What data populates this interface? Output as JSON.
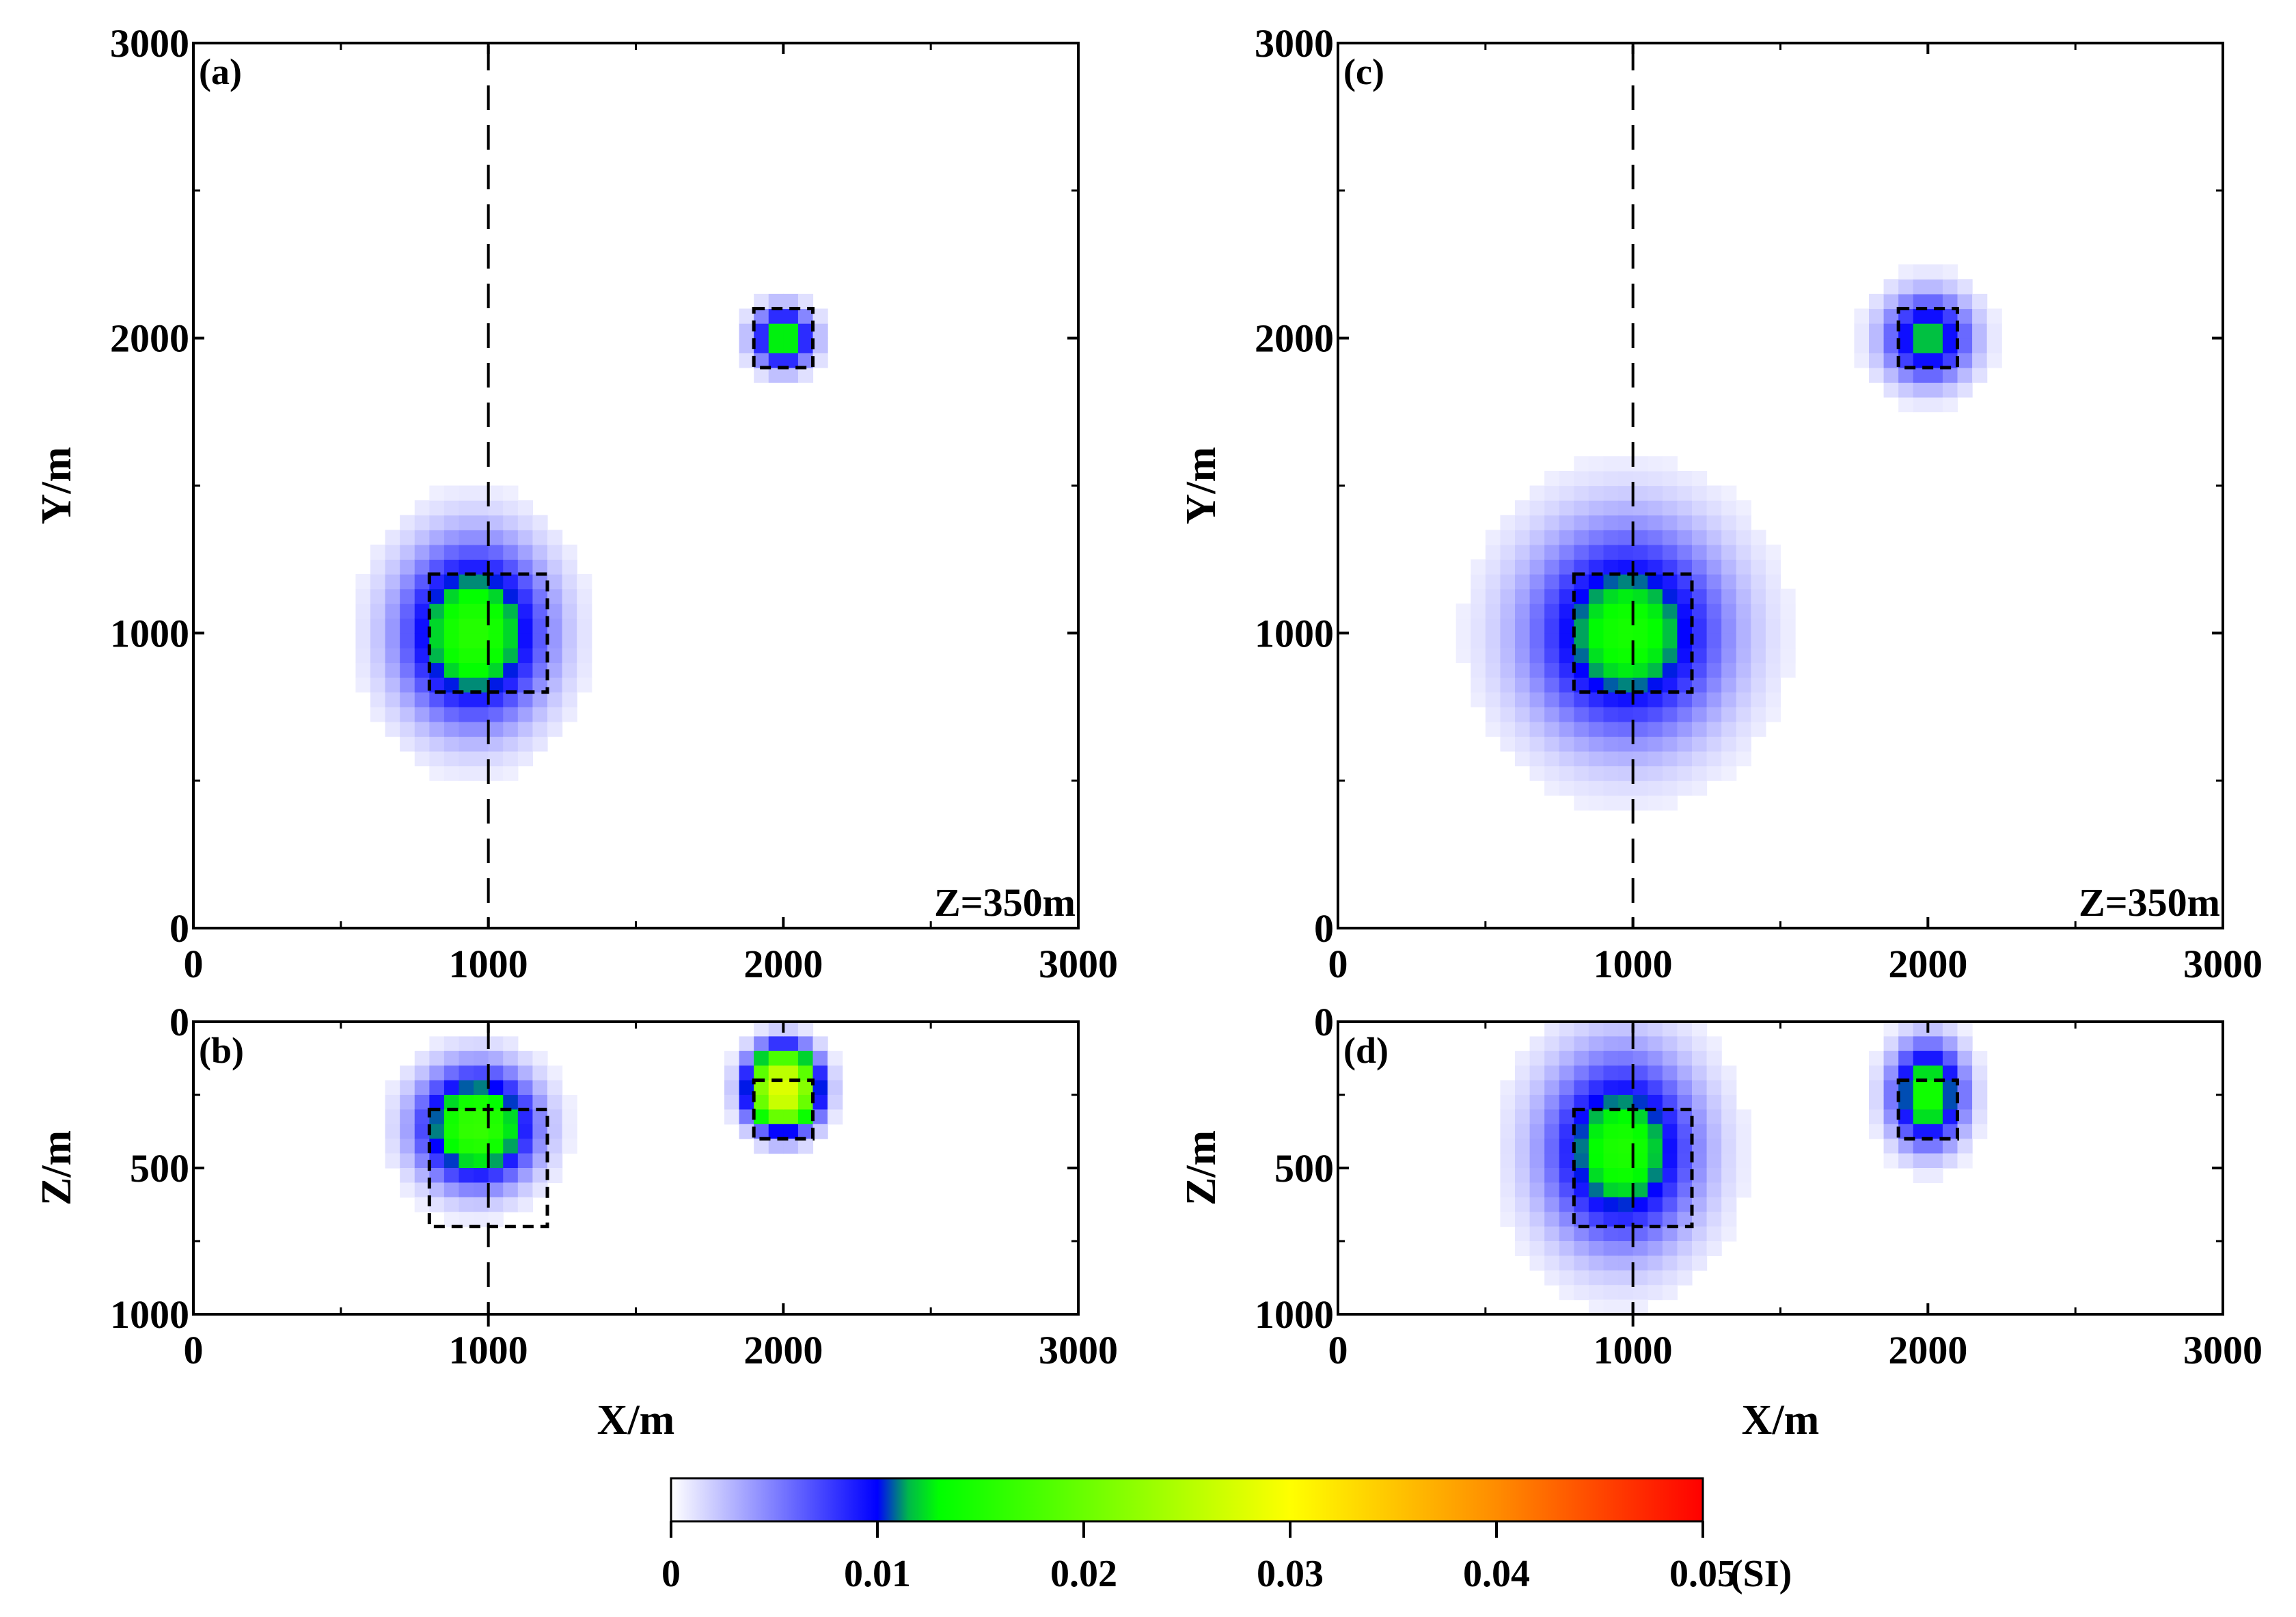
{
  "chart_data": {
    "type": "heatmap",
    "colorbar": {
      "min": 0,
      "max": 0.05,
      "ticks": [
        "0",
        "0.01",
        "0.02",
        "0.03",
        "0.04",
        "0.05"
      ],
      "tick_values": [
        0,
        0.01,
        0.02,
        0.03,
        0.04,
        0.05
      ],
      "unit": "(SI)",
      "stops": [
        {
          "v": 0.0,
          "color": "#ffffff"
        },
        {
          "v": 0.01,
          "color": "#0000ff"
        },
        {
          "v": 0.0115,
          "color": "#00b84a"
        },
        {
          "v": 0.013,
          "color": "#00ff00"
        },
        {
          "v": 0.03,
          "color": "#ffff00"
        },
        {
          "v": 0.04,
          "color": "#ff8c00"
        },
        {
          "v": 0.05,
          "color": "#ff0000"
        }
      ]
    },
    "panels": [
      {
        "id": "a",
        "label": "(a)",
        "view": "plan",
        "annotation": "Z=350m",
        "xlabel": "",
        "ylabel": "Y/m",
        "xlim": [
          0,
          3000
        ],
        "ylim": [
          0,
          3000
        ],
        "xticks": [
          "0",
          "1000",
          "2000",
          "3000"
        ],
        "yticks": [
          "0",
          "1000",
          "2000",
          "3000"
        ],
        "profile_x": 1000,
        "true_bodies": [
          {
            "x": [
              800,
              1200
            ],
            "y": [
              800,
              1200
            ]
          },
          {
            "x": [
              1900,
              2100
            ],
            "y": [
              1900,
              2100
            ]
          }
        ],
        "anomalies": [
          {
            "cx": 950,
            "cy": 1000,
            "rx": 230,
            "ry": 280,
            "peak": 0.0155,
            "falloff": 2.2
          },
          {
            "cx": 2000,
            "cy": 2000,
            "rx": 100,
            "ry": 100,
            "peak": 0.0135,
            "falloff": 2.6
          }
        ]
      },
      {
        "id": "b",
        "label": "(b)",
        "view": "section",
        "xlabel": "X/m",
        "ylabel": "Z/m",
        "xlim": [
          0,
          3000
        ],
        "zlim": [
          0,
          1000
        ],
        "xticks": [
          "0",
          "1000",
          "2000",
          "3000"
        ],
        "zticks": [
          "0",
          "500",
          "1000"
        ],
        "profile_x": 1000,
        "true_bodies": [
          {
            "x": [
              800,
              1200
            ],
            "z": [
              300,
              700
            ]
          },
          {
            "x": [
              1900,
              2100
            ],
            "z": [
              200,
              400
            ]
          }
        ],
        "anomalies": [
          {
            "cx": 960,
            "cz": 360,
            "rx": 190,
            "rz": 190,
            "peak": 0.0165,
            "falloff": 2.4
          },
          {
            "cx": 2000,
            "cz": 230,
            "rx": 120,
            "rz": 140,
            "peak": 0.028,
            "falloff": 2.8
          }
        ]
      },
      {
        "id": "c",
        "label": "(c)",
        "view": "plan",
        "annotation": "Z=350m",
        "xlabel": "",
        "ylabel": "Y/m",
        "xlim": [
          0,
          3000
        ],
        "ylim": [
          0,
          3000
        ],
        "xticks": [
          "0",
          "1000",
          "2000",
          "3000"
        ],
        "yticks": [
          "0",
          "1000",
          "2000",
          "3000"
        ],
        "profile_x": 1000,
        "true_bodies": [
          {
            "x": [
              800,
              1200
            ],
            "y": [
              800,
              1200
            ]
          },
          {
            "x": [
              1900,
              2100
            ],
            "y": [
              1900,
              2100
            ]
          }
        ],
        "anomalies": [
          {
            "cx": 980,
            "cy": 1000,
            "rx": 300,
            "ry": 320,
            "peak": 0.0145,
            "falloff": 2.0
          },
          {
            "cx": 2000,
            "cy": 2000,
            "rx": 140,
            "ry": 140,
            "peak": 0.0122,
            "falloff": 2.2
          }
        ]
      },
      {
        "id": "d",
        "label": "(d)",
        "view": "section",
        "xlabel": "X/m",
        "ylabel": "Z/m",
        "xlim": [
          0,
          3000
        ],
        "zlim": [
          0,
          1000
        ],
        "xticks": [
          "0",
          "1000",
          "2000",
          "3000"
        ],
        "zticks": [
          "0",
          "500",
          "1000"
        ],
        "profile_x": 1000,
        "true_bodies": [
          {
            "x": [
              800,
              1200
            ],
            "z": [
              300,
              700
            ]
          },
          {
            "x": [
              1900,
              2100
            ],
            "z": [
              200,
              400
            ]
          }
        ],
        "anomalies": [
          {
            "cx": 960,
            "cz": 440,
            "rx": 230,
            "rz": 290,
            "peak": 0.015,
            "falloff": 2.0
          },
          {
            "cx": 2000,
            "cz": 250,
            "rx": 120,
            "rz": 170,
            "peak": 0.0145,
            "falloff": 2.4
          }
        ]
      }
    ]
  }
}
